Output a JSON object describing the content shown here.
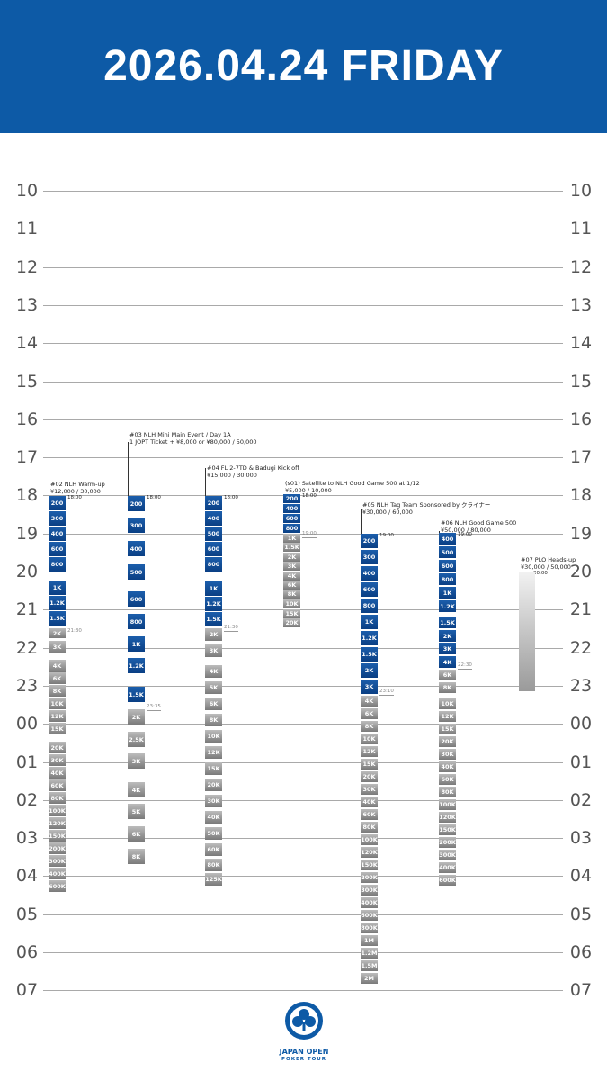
{
  "header": {
    "title": "2026.04.24  FRIDAY"
  },
  "hours": [
    "10",
    "11",
    "12",
    "13",
    "14",
    "15",
    "16",
    "17",
    "18",
    "19",
    "20",
    "21",
    "22",
    "23",
    "00",
    "01",
    "02",
    "03",
    "04",
    "05",
    "06",
    "07"
  ],
  "events": [
    {
      "title": [
        "#02 NLH Warm-up",
        "¥12,000 / 30,000"
      ],
      "start_label": "18:00",
      "late_reg_label": "21:30",
      "levels": [
        "200",
        "300",
        "400",
        "600",
        "800",
        "1K",
        "1.2K",
        "1.5K",
        "2K",
        "3K",
        "4K",
        "6K",
        "8K",
        "10K",
        "12K",
        "15K",
        "20K",
        "30K",
        "40K",
        "60K",
        "80K",
        "100K",
        "120K",
        "150K",
        "200K",
        "300K",
        "400K",
        "600K"
      ]
    },
    {
      "title": [
        "#03 NLH Mini Main Event / Day 1A",
        "1 JOPT Ticket + ¥8,000 or ¥80,000 / 50,000"
      ],
      "start_label": "18:00",
      "late_reg_label": "23:35",
      "levels": [
        "200",
        "300",
        "400",
        "500",
        "600",
        "800",
        "1K",
        "1.2K",
        "1.5K",
        "2K",
        "2.5K",
        "3K",
        "4K",
        "5K",
        "6K",
        "8K"
      ]
    },
    {
      "title": [
        "#04 FL 2-7TD & Badugi Kick off",
        "¥15,000 / 30,000"
      ],
      "start_label": "18:00",
      "late_reg_label": "21:30",
      "levels": [
        "200",
        "400",
        "500",
        "600",
        "800",
        "1K",
        "1.2K",
        "1.5K",
        "2K",
        "3K",
        "4K",
        "5K",
        "6K",
        "8K",
        "10K",
        "12K",
        "15K",
        "20K",
        "30K",
        "40K",
        "50K",
        "60K",
        "80K",
        "100K",
        "125K"
      ]
    },
    {
      "title": [
        "(s01) Satellite to NLH Good Game 500 at 1/12",
        "¥5,000 / 10,000"
      ],
      "start_label": "18:00",
      "late_reg_label": "19:00",
      "levels": [
        "200",
        "400",
        "600",
        "800",
        "1K",
        "1.5K",
        "2K",
        "3K",
        "4K",
        "6K",
        "8K",
        "10K",
        "15K",
        "20K"
      ]
    },
    {
      "title": [
        "#05 NLH Tag Team Sponsored by クライナー",
        "¥30,000 / 60,000"
      ],
      "start_label": "19:00",
      "late_reg_label": "23:10",
      "levels": [
        "200",
        "300",
        "400",
        "600",
        "800",
        "1K",
        "1.2K",
        "1.5K",
        "2K",
        "3K",
        "4K",
        "6K",
        "8K",
        "10K",
        "12K",
        "15K",
        "20K",
        "30K",
        "40K",
        "60K",
        "80K",
        "100K",
        "120K",
        "150K",
        "200K",
        "300K",
        "400K",
        "600K",
        "800K",
        "1M",
        "1.2M",
        "1.5M",
        "2M"
      ]
    },
    {
      "title": [
        "#06 NLH Good Game 500",
        "¥50,000 / 80,000"
      ],
      "start_label": "19:00",
      "late_reg_label": "22:30",
      "levels": [
        "400",
        "500",
        "600",
        "800",
        "1K",
        "1.2K",
        "1.5K",
        "2K",
        "3K",
        "4K",
        "6K",
        "8K",
        "10K",
        "12K",
        "15K",
        "20K",
        "30K",
        "40K",
        "60K",
        "80K",
        "100K",
        "120K",
        "150K",
        "200K",
        "300K",
        "400K",
        "600K"
      ]
    },
    {
      "title": [
        "#07 PLO Heads-up",
        "¥30,000 / 50,000"
      ],
      "start_label": "20:00",
      "late_reg_label": "",
      "levels": []
    }
  ],
  "logo": {
    "line1": "JAPAN OPEN",
    "line2": "POKER TOUR"
  },
  "colors": {
    "header": "#0d5aa6",
    "registration_block": "#0d4c98",
    "late_block": "#a9a9a9",
    "grid_line": "#a9a9a9"
  }
}
